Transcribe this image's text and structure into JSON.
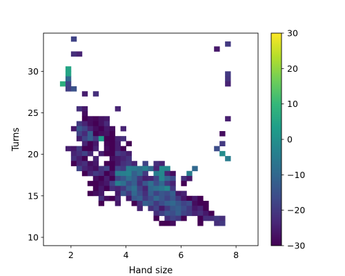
{
  "chart_data": {
    "type": "heatmap",
    "title": "",
    "xlabel": "Hand size",
    "ylabel": "Turns",
    "xlim": [
      1.0,
      8.8
    ],
    "ylim": [
      9.0,
      34.6
    ],
    "x_ticks": [
      2,
      4,
      6,
      8
    ],
    "y_ticks": [
      10,
      15,
      20,
      25,
      30
    ],
    "cell_size": [
      0.2,
      0.6
    ],
    "colormap": "viridis",
    "colorbar": {
      "vmin": -30,
      "vmax": 30,
      "ticks": [
        -30,
        -20,
        -10,
        0,
        10,
        20,
        30
      ]
    },
    "grid": false,
    "legend": "none",
    "cells": [
      [
        2.1,
        33.9,
        -18
      ],
      [
        2.1,
        32.1,
        -22
      ],
      [
        2.3,
        32.1,
        -24
      ],
      [
        1.9,
        30.3,
        5
      ],
      [
        1.9,
        29.7,
        5
      ],
      [
        1.9,
        29.1,
        -10
      ],
      [
        1.7,
        28.5,
        8
      ],
      [
        1.9,
        28.5,
        -18
      ],
      [
        1.9,
        27.9,
        -19
      ],
      [
        2.1,
        27.9,
        -15
      ],
      [
        2.5,
        27.3,
        -25
      ],
      [
        2.9,
        27.3,
        -22
      ],
      [
        7.7,
        33.3,
        -20
      ],
      [
        7.3,
        32.7,
        -26
      ],
      [
        7.7,
        29.7,
        -20
      ],
      [
        7.7,
        29.1,
        -21
      ],
      [
        7.7,
        28.5,
        -24
      ],
      [
        2.3,
        25.5,
        -22
      ],
      [
        2.5,
        25.5,
        -26
      ],
      [
        3.7,
        25.5,
        -24
      ],
      [
        2.5,
        24.9,
        -28
      ],
      [
        2.5,
        24.3,
        -30
      ],
      [
        2.7,
        24.3,
        -28
      ],
      [
        2.9,
        24.3,
        -29
      ],
      [
        3.1,
        24.3,
        -27
      ],
      [
        3.3,
        24.3,
        -26
      ],
      [
        7.7,
        24.3,
        -25
      ],
      [
        2.3,
        23.7,
        -20
      ],
      [
        2.5,
        23.7,
        -24
      ],
      [
        2.7,
        23.7,
        -28
      ],
      [
        2.9,
        23.7,
        -30
      ],
      [
        3.1,
        23.7,
        -27
      ],
      [
        3.3,
        23.7,
        -23
      ],
      [
        2.1,
        23.1,
        -26
      ],
      [
        2.3,
        23.1,
        -14
      ],
      [
        2.5,
        23.1,
        -18
      ],
      [
        2.7,
        23.1,
        -24
      ],
      [
        2.9,
        23.1,
        -28
      ],
      [
        3.1,
        23.1,
        -30
      ],
      [
        3.3,
        23.1,
        -26
      ],
      [
        3.5,
        23.1,
        -28
      ],
      [
        3.9,
        23.1,
        -24
      ],
      [
        2.3,
        22.5,
        -18
      ],
      [
        2.5,
        22.5,
        -23
      ],
      [
        2.7,
        22.5,
        -12
      ],
      [
        2.9,
        22.5,
        -30
      ],
      [
        3.1,
        22.5,
        -28
      ],
      [
        3.3,
        22.5,
        -27
      ],
      [
        3.5,
        22.5,
        -30
      ],
      [
        7.5,
        22.5,
        -28
      ],
      [
        2.3,
        21.9,
        -25
      ],
      [
        2.5,
        21.9,
        -18
      ],
      [
        2.7,
        21.9,
        -12
      ],
      [
        2.9,
        21.9,
        -20
      ],
      [
        3.1,
        21.9,
        3
      ],
      [
        3.3,
        21.9,
        -30
      ],
      [
        3.5,
        21.9,
        -30
      ],
      [
        3.7,
        21.9,
        -24
      ],
      [
        3.9,
        21.9,
        -22
      ],
      [
        7.5,
        21.3,
        -20
      ],
      [
        2.5,
        21.3,
        -24
      ],
      [
        2.7,
        21.3,
        -30
      ],
      [
        2.9,
        21.3,
        -26
      ],
      [
        3.3,
        21.3,
        -29
      ],
      [
        3.5,
        21.3,
        -30
      ],
      [
        3.7,
        21.3,
        -25
      ],
      [
        4.1,
        21.3,
        -30
      ],
      [
        1.9,
        20.7,
        -25
      ],
      [
        2.1,
        20.7,
        -26
      ],
      [
        2.3,
        20.7,
        -20
      ],
      [
        2.5,
        20.7,
        -30
      ],
      [
        2.7,
        20.7,
        -30
      ],
      [
        2.9,
        20.7,
        -24
      ],
      [
        3.3,
        20.7,
        -28
      ],
      [
        3.5,
        20.7,
        -30
      ],
      [
        3.7,
        20.7,
        -25
      ],
      [
        3.9,
        20.7,
        -30
      ],
      [
        7.3,
        20.7,
        -16
      ],
      [
        2.1,
        20.1,
        -24
      ],
      [
        2.3,
        20.1,
        -22
      ],
      [
        2.5,
        20.1,
        -18
      ],
      [
        2.7,
        20.1,
        -24
      ],
      [
        3.1,
        20.1,
        -25
      ],
      [
        3.3,
        20.1,
        -30
      ],
      [
        3.5,
        20.1,
        -30
      ],
      [
        3.7,
        20.1,
        -20
      ],
      [
        3.9,
        20.1,
        -22
      ],
      [
        4.1,
        20.1,
        -25
      ],
      [
        7.5,
        20.1,
        -1
      ],
      [
        2.1,
        19.5,
        -22
      ],
      [
        2.3,
        19.5,
        -25
      ],
      [
        2.5,
        19.5,
        -30
      ],
      [
        2.9,
        19.5,
        -24
      ],
      [
        3.5,
        19.5,
        -28
      ],
      [
        3.7,
        19.5,
        -26
      ],
      [
        3.9,
        19.5,
        -24
      ],
      [
        4.1,
        19.5,
        -21
      ],
      [
        7.7,
        19.5,
        -5
      ],
      [
        2.1,
        18.9,
        -30
      ],
      [
        2.3,
        18.9,
        -24
      ],
      [
        2.5,
        18.9,
        -22
      ],
      [
        2.7,
        18.9,
        -28
      ],
      [
        2.9,
        18.9,
        -26
      ],
      [
        3.3,
        18.9,
        -30
      ],
      [
        3.5,
        18.9,
        -30
      ],
      [
        3.7,
        18.9,
        -26
      ],
      [
        3.9,
        18.9,
        -22
      ],
      [
        4.1,
        18.9,
        -20
      ],
      [
        4.3,
        18.9,
        -24
      ],
      [
        4.7,
        18.9,
        -18
      ],
      [
        5.1,
        18.9,
        -22
      ],
      [
        5.3,
        18.9,
        -24
      ],
      [
        4.9,
        18.3,
        0
      ],
      [
        5.3,
        18.3,
        -1
      ],
      [
        5.5,
        18.3,
        -2
      ],
      [
        6.5,
        18.3,
        -10
      ],
      [
        2.3,
        18.3,
        -18
      ],
      [
        2.5,
        18.3,
        -24
      ],
      [
        2.7,
        18.3,
        -26
      ],
      [
        2.9,
        18.3,
        -28
      ],
      [
        3.1,
        18.3,
        -21
      ],
      [
        3.3,
        18.3,
        -18
      ],
      [
        3.5,
        18.3,
        -30
      ],
      [
        3.7,
        18.3,
        -18
      ],
      [
        3.9,
        18.3,
        -20
      ],
      [
        4.1,
        18.3,
        -5
      ],
      [
        4.3,
        18.3,
        -6
      ],
      [
        4.5,
        18.3,
        -8
      ],
      [
        4.7,
        18.3,
        -4
      ],
      [
        4.9,
        18.3,
        -10
      ],
      [
        5.1,
        18.3,
        -24
      ],
      [
        2.5,
        17.7,
        -30
      ],
      [
        2.7,
        17.7,
        -24
      ],
      [
        2.9,
        17.7,
        -20
      ],
      [
        3.1,
        17.7,
        -22
      ],
      [
        3.3,
        17.7,
        -30
      ],
      [
        3.5,
        17.7,
        -26
      ],
      [
        3.7,
        17.7,
        -5
      ],
      [
        3.9,
        17.7,
        -4
      ],
      [
        4.1,
        17.7,
        -3
      ],
      [
        4.3,
        17.7,
        -12
      ],
      [
        4.5,
        17.7,
        -8
      ],
      [
        4.7,
        17.7,
        -20
      ],
      [
        5.1,
        17.7,
        -5
      ],
      [
        5.3,
        17.7,
        -2
      ],
      [
        5.5,
        17.7,
        -24
      ],
      [
        5.7,
        17.7,
        -28
      ],
      [
        6.3,
        17.7,
        -5
      ],
      [
        2.9,
        17.1,
        -28
      ],
      [
        3.1,
        17.1,
        -30
      ],
      [
        3.3,
        17.1,
        -25
      ],
      [
        3.5,
        17.1,
        -30
      ],
      [
        3.7,
        17.1,
        -18
      ],
      [
        3.9,
        17.1,
        -14
      ],
      [
        4.1,
        17.1,
        -8
      ],
      [
        4.3,
        17.1,
        -12
      ],
      [
        4.5,
        17.1,
        -20
      ],
      [
        4.7,
        17.1,
        -25
      ],
      [
        4.9,
        17.1,
        -24
      ],
      [
        5.1,
        17.1,
        -18
      ],
      [
        5.3,
        17.1,
        -2
      ],
      [
        5.5,
        17.1,
        -10
      ],
      [
        5.7,
        17.1,
        -16
      ],
      [
        6.1,
        17.1,
        -22
      ],
      [
        6.3,
        17.1,
        -26
      ],
      [
        2.7,
        16.5,
        -30
      ],
      [
        2.9,
        16.5,
        -30
      ],
      [
        3.1,
        16.5,
        -28
      ],
      [
        3.3,
        16.5,
        -26
      ],
      [
        3.5,
        16.5,
        -18
      ],
      [
        3.7,
        16.5,
        -4
      ],
      [
        3.9,
        16.5,
        -8
      ],
      [
        4.1,
        16.5,
        -16
      ],
      [
        4.3,
        16.5,
        -12
      ],
      [
        4.5,
        16.5,
        -22
      ],
      [
        4.7,
        16.5,
        -14
      ],
      [
        4.9,
        16.5,
        -8
      ],
      [
        5.1,
        16.5,
        -16
      ],
      [
        5.3,
        16.5,
        -10
      ],
      [
        5.5,
        16.5,
        -20
      ],
      [
        5.7,
        16.5,
        -24
      ],
      [
        6.1,
        16.5,
        -30
      ],
      [
        2.9,
        15.9,
        -30
      ],
      [
        3.1,
        15.9,
        -26
      ],
      [
        3.3,
        15.9,
        -30
      ],
      [
        3.5,
        15.9,
        -22
      ],
      [
        3.7,
        15.9,
        -24
      ],
      [
        3.9,
        15.9,
        -20
      ],
      [
        4.1,
        15.9,
        -12
      ],
      [
        4.3,
        15.9,
        -8
      ],
      [
        4.5,
        15.9,
        -18
      ],
      [
        4.7,
        15.9,
        -24
      ],
      [
        4.9,
        15.9,
        -10
      ],
      [
        5.1,
        15.9,
        -8
      ],
      [
        5.3,
        15.9,
        -6
      ],
      [
        5.5,
        15.9,
        -2
      ],
      [
        5.7,
        15.9,
        -20
      ],
      [
        2.7,
        15.3,
        -30
      ],
      [
        2.9,
        15.3,
        -28
      ],
      [
        3.1,
        15.3,
        -26
      ],
      [
        3.7,
        15.3,
        -26
      ],
      [
        3.9,
        15.3,
        -14
      ],
      [
        4.1,
        15.3,
        -20
      ],
      [
        4.3,
        15.3,
        -10
      ],
      [
        4.5,
        15.3,
        -16
      ],
      [
        4.7,
        15.3,
        -22
      ],
      [
        4.9,
        15.3,
        -12
      ],
      [
        5.1,
        15.3,
        -18
      ],
      [
        5.3,
        15.3,
        -14
      ],
      [
        5.5,
        15.3,
        -16
      ],
      [
        5.7,
        15.3,
        -12
      ],
      [
        5.9,
        15.3,
        -26
      ],
      [
        6.1,
        15.3,
        -24
      ],
      [
        3.1,
        14.7,
        -22
      ],
      [
        3.3,
        14.7,
        -28
      ],
      [
        3.5,
        14.7,
        -30
      ],
      [
        3.7,
        14.7,
        -24
      ],
      [
        4.1,
        14.7,
        -26
      ],
      [
        4.3,
        14.7,
        -14
      ],
      [
        4.5,
        14.7,
        -12
      ],
      [
        4.7,
        14.7,
        -20
      ],
      [
        4.9,
        14.7,
        -16
      ],
      [
        5.1,
        14.7,
        -10
      ],
      [
        5.3,
        14.7,
        -14
      ],
      [
        5.5,
        14.7,
        -18
      ],
      [
        5.7,
        14.7,
        -14
      ],
      [
        5.9,
        14.7,
        -20
      ],
      [
        6.1,
        14.7,
        -26
      ],
      [
        6.3,
        14.7,
        -30
      ],
      [
        6.5,
        14.7,
        -26
      ],
      [
        6.7,
        14.7,
        -30
      ],
      [
        3.1,
        14.1,
        -30
      ],
      [
        3.7,
        14.1,
        -26
      ],
      [
        4.3,
        14.1,
        -30
      ],
      [
        4.5,
        14.1,
        -22
      ],
      [
        4.7,
        14.1,
        -12
      ],
      [
        4.9,
        14.1,
        -14
      ],
      [
        5.1,
        14.1,
        -20
      ],
      [
        5.3,
        14.1,
        -16
      ],
      [
        5.5,
        14.1,
        -12
      ],
      [
        5.7,
        14.1,
        -10
      ],
      [
        5.9,
        14.1,
        -14
      ],
      [
        6.1,
        14.1,
        -18
      ],
      [
        6.3,
        14.1,
        -16
      ],
      [
        6.5,
        14.1,
        -28
      ],
      [
        6.7,
        14.1,
        -30
      ],
      [
        6.9,
        14.1,
        -30
      ],
      [
        4.5,
        13.5,
        -24
      ],
      [
        4.9,
        13.5,
        -22
      ],
      [
        5.1,
        13.5,
        -18
      ],
      [
        5.3,
        13.5,
        -26
      ],
      [
        5.5,
        13.5,
        -20
      ],
      [
        5.7,
        13.5,
        -14
      ],
      [
        5.9,
        13.5,
        -12
      ],
      [
        6.1,
        13.5,
        -16
      ],
      [
        6.3,
        13.5,
        -20
      ],
      [
        6.5,
        13.5,
        -26
      ],
      [
        6.7,
        13.5,
        -24
      ],
      [
        6.9,
        13.5,
        -30
      ],
      [
        5.1,
        12.9,
        -22
      ],
      [
        5.3,
        12.9,
        -18
      ],
      [
        5.5,
        12.9,
        -14
      ],
      [
        5.7,
        12.9,
        -16
      ],
      [
        5.9,
        12.9,
        -12
      ],
      [
        6.1,
        12.9,
        -18
      ],
      [
        6.3,
        12.9,
        -20
      ],
      [
        6.5,
        12.9,
        -24
      ],
      [
        6.7,
        12.9,
        -22
      ],
      [
        6.9,
        12.9,
        -26
      ],
      [
        7.1,
        12.9,
        -30
      ],
      [
        5.1,
        12.3,
        -30
      ],
      [
        5.5,
        12.3,
        -22
      ],
      [
        5.7,
        12.3,
        -18
      ],
      [
        5.9,
        12.3,
        -20
      ],
      [
        6.1,
        12.3,
        -30
      ],
      [
        6.7,
        12.3,
        -30
      ],
      [
        6.9,
        12.3,
        -22
      ],
      [
        7.1,
        12.3,
        -22
      ],
      [
        7.3,
        12.3,
        -20
      ],
      [
        7.5,
        12.3,
        -22
      ],
      [
        5.3,
        11.7,
        -30
      ],
      [
        5.5,
        11.7,
        -30
      ],
      [
        5.7,
        11.7,
        -28
      ],
      [
        6.7,
        11.7,
        -30
      ],
      [
        7.3,
        11.7,
        -22
      ],
      [
        7.5,
        11.7,
        -20
      ]
    ]
  }
}
